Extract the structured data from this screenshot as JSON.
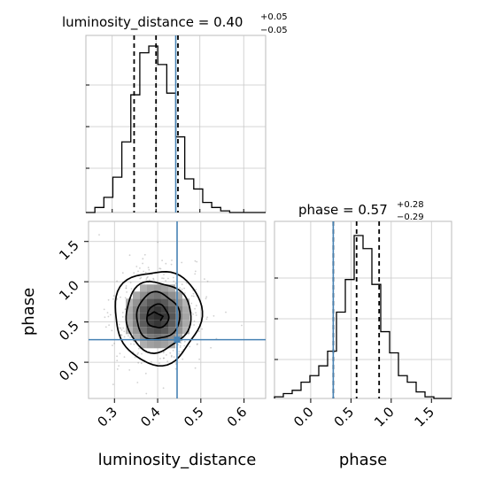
{
  "chart_data": {
    "type": "corner",
    "parameters": [
      "luminosity_distance",
      "phase"
    ],
    "titles": [
      {
        "param": "luminosity_distance",
        "label": "luminosity_distance",
        "median": "0.40",
        "plus": "+0.05",
        "minus": "−0.05"
      },
      {
        "param": "phase",
        "label": "phase",
        "median": "0.57",
        "plus": "+0.28",
        "minus": "−0.29"
      }
    ],
    "axis_labels": {
      "x_left": "luminosity_distance",
      "x_right": "phase",
      "y_lower": "phase"
    },
    "ticks": {
      "luminosity_distance": [
        "0.3",
        "0.4",
        "0.5",
        "0.6"
      ],
      "phase": [
        "0.0",
        "0.5",
        "1.0",
        "1.5"
      ]
    },
    "ranges": {
      "luminosity_distance": [
        0.24,
        0.65
      ],
      "phase": [
        -0.45,
        1.75
      ]
    },
    "truths": {
      "luminosity_distance": 0.445,
      "phase": 0.28
    },
    "quantiles": {
      "luminosity_distance": [
        0.35,
        0.4,
        0.45
      ],
      "phase": [
        0.28,
        0.57,
        0.85
      ]
    },
    "histograms": {
      "luminosity_distance": {
        "edges": [
          0.24,
          0.2605,
          0.281,
          0.3015,
          0.322,
          0.3425,
          0.363,
          0.3835,
          0.404,
          0.4245,
          0.445,
          0.4655,
          0.486,
          0.5065,
          0.527,
          0.5475,
          0.568,
          0.5885,
          0.609,
          0.6295,
          0.65
        ],
        "counts": [
          0,
          3,
          9,
          21,
          42,
          70,
          95,
          99,
          88,
          71,
          45,
          20,
          14,
          6,
          3,
          1,
          0,
          0,
          0,
          0
        ]
      },
      "phase": {
        "edges": [
          -0.45,
          -0.34,
          -0.23,
          -0.12,
          -0.01,
          0.1,
          0.21,
          0.32,
          0.43,
          0.54,
          0.65,
          0.76,
          0.87,
          0.98,
          1.09,
          1.2,
          1.31,
          1.42,
          1.53,
          1.64,
          1.75
        ],
        "counts": [
          1,
          3,
          5,
          10,
          14,
          20,
          29,
          53,
          73,
          100,
          92,
          70,
          41,
          28,
          14,
          10,
          4,
          1,
          0,
          0
        ]
      }
    },
    "density_2d": {
      "center": [
        0.4,
        0.57
      ],
      "sigma": [
        0.05,
        0.29
      ],
      "contour_levels": [
        "0.5σ",
        "1σ",
        "1.5σ",
        "2σ"
      ]
    }
  }
}
